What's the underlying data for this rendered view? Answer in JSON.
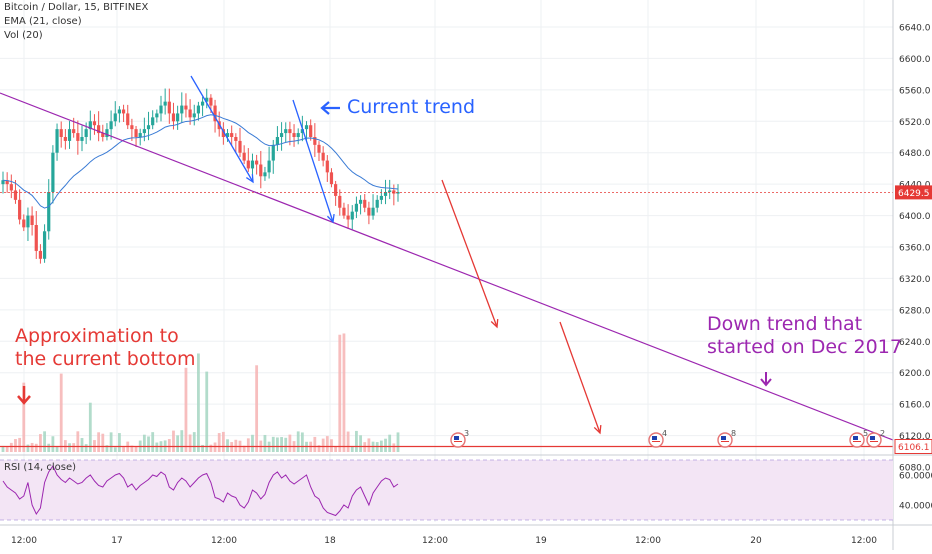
{
  "header": {
    "symbol": "Bitcoin / Dollar, 15, BITFINEX",
    "ema": "EMA (21, close)",
    "vol": "Vol (20)"
  },
  "chart_data": [
    {
      "type": "candlestick",
      "name": "price",
      "x_labels": [
        "12:00",
        "17",
        "12:00",
        "18",
        "12:00",
        "19",
        "12:00",
        "20",
        "12:00"
      ],
      "y_ticks": [
        "6640.0",
        "6600.0",
        "6560.0",
        "6520.0",
        "6480.0",
        "6440.0",
        "6400.0",
        "6360.0",
        "6320.0",
        "6280.0",
        "6240.0",
        "6200.0",
        "6160.0",
        "6120.0",
        "6080.0"
      ],
      "ylim": [
        6060,
        6670
      ],
      "current_price_label": "6429.5",
      "current_price": 6429.5,
      "support_label": "6106.1",
      "support_price": 6106.1,
      "closes": [
        6445,
        6440,
        6432,
        6420,
        6395,
        6385,
        6400,
        6388,
        6355,
        6345,
        6380,
        6430,
        6480,
        6510,
        6500,
        6495,
        6510,
        6505,
        6495,
        6500,
        6510,
        6520,
        6515,
        6505,
        6500,
        6510,
        6520,
        6530,
        6535,
        6530,
        6515,
        6510,
        6500,
        6505,
        6510,
        6515,
        6525,
        6530,
        6540,
        6545,
        6530,
        6520,
        6530,
        6540,
        6535,
        6525,
        6530,
        6540,
        6545,
        6550,
        6540,
        6520,
        6510,
        6500,
        6505,
        6500,
        6495,
        6480,
        6470,
        6460,
        6470,
        6465,
        6450,
        6455,
        6470,
        6490,
        6500,
        6505,
        6510,
        6505,
        6500,
        6505,
        6510,
        6515,
        6500,
        6490,
        6480,
        6470,
        6455,
        6440,
        6425,
        6410,
        6400,
        6395,
        6405,
        6415,
        6420,
        6410,
        6400,
        6410,
        6420,
        6425,
        6430,
        6432,
        6428,
        6430
      ],
      "color_up": "#26a69a",
      "color_down": "#ef5350"
    },
    {
      "type": "line",
      "name": "RSI",
      "label": "RSI (14, close)",
      "y_ticks": [
        "60.0000",
        "40.0000"
      ],
      "ylim": [
        20,
        80
      ],
      "values": [
        56,
        52,
        50,
        48,
        44,
        46,
        55,
        40,
        34,
        38,
        55,
        62,
        66,
        60,
        57,
        55,
        58,
        56,
        54,
        55,
        58,
        60,
        56,
        53,
        52,
        56,
        58,
        60,
        61,
        58,
        52,
        54,
        50,
        53,
        55,
        57,
        60,
        59,
        62,
        60,
        52,
        50,
        55,
        58,
        56,
        52,
        55,
        58,
        60,
        61,
        55,
        45,
        44,
        42,
        48,
        46,
        45,
        40,
        38,
        42,
        50,
        48,
        44,
        47,
        55,
        60,
        62,
        58,
        60,
        56,
        54,
        56,
        58,
        60,
        52,
        46,
        44,
        38,
        35,
        34,
        33,
        36,
        40,
        38,
        46,
        50,
        52,
        46,
        40,
        48,
        52,
        56,
        58,
        57,
        52,
        54
      ],
      "line_color": "#9c27b0",
      "fill_color": "#f3e5f5"
    }
  ],
  "annotations": {
    "current_trend": "Current trend",
    "approx_bottom_line1": "Approximation to",
    "approx_bottom_line2": "the current bottom",
    "down_trend_line1": "Down trend that",
    "down_trend_line2": "started on Dec 2017",
    "blue": "#2962ff",
    "red": "#e53935",
    "purple": "#9c27b0"
  },
  "event_badges": [
    "3",
    "4",
    "8",
    "5",
    "2"
  ]
}
